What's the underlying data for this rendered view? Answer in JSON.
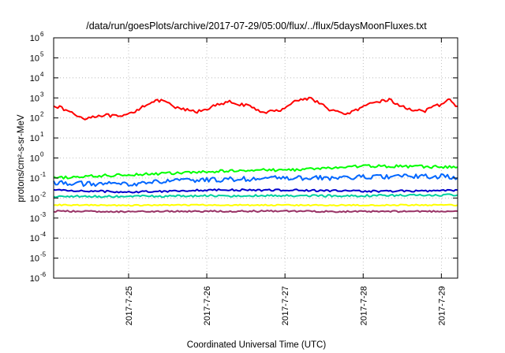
{
  "chart_data": {
    "type": "line",
    "title": "/data/run/goesPlots/archive/2017-07-29/05:00/flux/../flux/5daysMoonFluxes.txt",
    "xlabel": "Coordinated Universal Time (UTC)",
    "ylabel": "protons/cm²-s-sr-MeV",
    "yscale": "log",
    "ylim": [
      1e-06,
      1000000.0
    ],
    "xlim": [
      "2017-07-24T01:00",
      "2017-07-29T05:00"
    ],
    "xtick_labels": [
      "2017-7-25",
      "2017-7-26",
      "2017-7-27",
      "2017-7-28",
      "2017-7-29"
    ],
    "ytick_labels": [
      {
        "base": "10",
        "exp": "6"
      },
      {
        "base": "10",
        "exp": "5"
      },
      {
        "base": "10",
        "exp": "4"
      },
      {
        "base": "10",
        "exp": "3"
      },
      {
        "base": "10",
        "exp": "2"
      },
      {
        "base": "10",
        "exp": "1"
      },
      {
        "base": "10",
        "exp": "0"
      },
      {
        "base": "10",
        "exp": "-1"
      },
      {
        "base": "10",
        "exp": "-2"
      },
      {
        "base": "10",
        "exp": "-3"
      },
      {
        "base": "10",
        "exp": "-4"
      },
      {
        "base": "10",
        "exp": "-5"
      },
      {
        "base": "10",
        "exp": "-6"
      }
    ],
    "grid": true,
    "legend": "none",
    "series": [
      {
        "color": "#ff0000",
        "points": [
          [
            "2017-07-24T01:00",
            450
          ],
          [
            "2017-07-24T06:00",
            200
          ],
          [
            "2017-07-24T10:00",
            95
          ],
          [
            "2017-07-24T16:00",
            140
          ],
          [
            "2017-07-24T22:00",
            110
          ],
          [
            "2017-07-25T02:00",
            220
          ],
          [
            "2017-07-25T06:00",
            550
          ],
          [
            "2017-07-25T10:00",
            750
          ],
          [
            "2017-07-25T15:00",
            300
          ],
          [
            "2017-07-25T21:00",
            200
          ],
          [
            "2017-07-26T02:00",
            380
          ],
          [
            "2017-07-26T07:00",
            620
          ],
          [
            "2017-07-26T12:00",
            420
          ],
          [
            "2017-07-26T17:00",
            200
          ],
          [
            "2017-07-26T22:00",
            220
          ],
          [
            "2017-07-27T03:00",
            700
          ],
          [
            "2017-07-27T08:00",
            1000
          ],
          [
            "2017-07-27T13:00",
            300
          ],
          [
            "2017-07-27T18:00",
            150
          ],
          [
            "2017-07-27T23:00",
            280
          ],
          [
            "2017-07-28T04:00",
            650
          ],
          [
            "2017-07-28T08:00",
            800
          ],
          [
            "2017-07-28T13:00",
            300
          ],
          [
            "2017-07-28T19:00",
            220
          ],
          [
            "2017-07-29T00:00",
            500
          ],
          [
            "2017-07-29T02:00",
            850
          ],
          [
            "2017-07-29T05:00",
            380
          ]
        ]
      },
      {
        "color": "#00ff00",
        "points": [
          [
            "2017-07-24T01:00",
            0.1
          ],
          [
            "2017-07-24T12:00",
            0.12
          ],
          [
            "2017-07-25T00:00",
            0.15
          ],
          [
            "2017-07-25T12:00",
            0.17
          ],
          [
            "2017-07-26T00:00",
            0.2
          ],
          [
            "2017-07-26T12:00",
            0.25
          ],
          [
            "2017-07-27T00:00",
            0.25
          ],
          [
            "2017-07-27T12:00",
            0.3
          ],
          [
            "2017-07-28T00:00",
            0.4
          ],
          [
            "2017-07-28T12:00",
            0.38
          ],
          [
            "2017-07-29T00:00",
            0.36
          ],
          [
            "2017-07-29T05:00",
            0.35
          ]
        ]
      },
      {
        "color": "#0066ff",
        "points": [
          [
            "2017-07-24T01:00",
            0.06
          ],
          [
            "2017-07-24T12:00",
            0.05
          ],
          [
            "2017-07-25T00:00",
            0.05
          ],
          [
            "2017-07-25T12:00",
            0.07
          ],
          [
            "2017-07-26T00:00",
            0.08
          ],
          [
            "2017-07-26T12:00",
            0.09
          ],
          [
            "2017-07-27T00:00",
            0.1
          ],
          [
            "2017-07-27T12:00",
            0.1
          ],
          [
            "2017-07-28T00:00",
            0.11
          ],
          [
            "2017-07-28T12:00",
            0.12
          ],
          [
            "2017-07-29T00:00",
            0.12
          ],
          [
            "2017-07-29T05:00",
            0.1
          ]
        ]
      },
      {
        "color": "#0000cc",
        "points": [
          [
            "2017-07-24T01:00",
            0.025
          ],
          [
            "2017-07-25T00:00",
            0.02
          ],
          [
            "2017-07-26T00:00",
            0.025
          ],
          [
            "2017-07-27T00:00",
            0.025
          ],
          [
            "2017-07-28T00:00",
            0.022
          ],
          [
            "2017-07-29T00:00",
            0.023
          ],
          [
            "2017-07-29T05:00",
            0.025
          ]
        ]
      },
      {
        "color": "#00d0a0",
        "points": [
          [
            "2017-07-24T01:00",
            0.012
          ],
          [
            "2017-07-25T00:00",
            0.012
          ],
          [
            "2017-07-26T00:00",
            0.013
          ],
          [
            "2017-07-27T00:00",
            0.013
          ],
          [
            "2017-07-28T00:00",
            0.013
          ],
          [
            "2017-07-29T00:00",
            0.014
          ],
          [
            "2017-07-29T05:00",
            0.014
          ]
        ]
      },
      {
        "color": "#ffff00",
        "points": [
          [
            "2017-07-24T01:00",
            0.0045
          ],
          [
            "2017-07-25T00:00",
            0.0043
          ],
          [
            "2017-07-26T00:00",
            0.0045
          ],
          [
            "2017-07-27T00:00",
            0.0044
          ],
          [
            "2017-07-28T00:00",
            0.0044
          ],
          [
            "2017-07-29T00:00",
            0.0045
          ],
          [
            "2017-07-29T05:00",
            0.0044
          ]
        ]
      },
      {
        "color": "#993366",
        "points": [
          [
            "2017-07-24T01:00",
            0.0022
          ],
          [
            "2017-07-25T00:00",
            0.0021
          ],
          [
            "2017-07-26T00:00",
            0.0022
          ],
          [
            "2017-07-27T00:00",
            0.0022
          ],
          [
            "2017-07-28T00:00",
            0.0021
          ],
          [
            "2017-07-29T00:00",
            0.0022
          ],
          [
            "2017-07-29T05:00",
            0.0022
          ]
        ]
      }
    ]
  }
}
